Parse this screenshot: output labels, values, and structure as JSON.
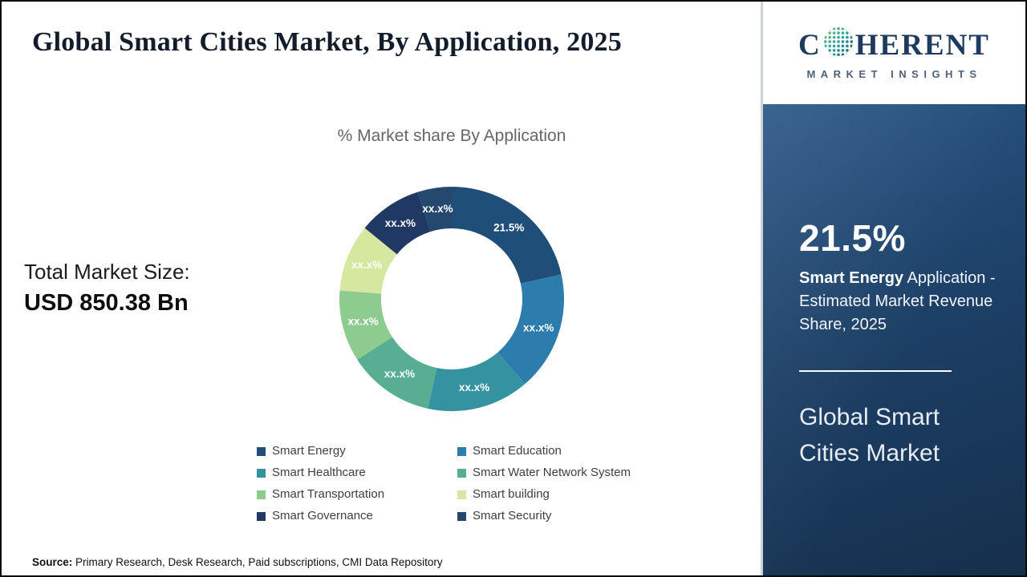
{
  "header": {
    "title": "Global Smart Cities Market, By Application, 2025",
    "logo": {
      "word_start": "C",
      "word_rest": "HERENT",
      "subtitle": "MARKET INSIGHTS"
    }
  },
  "left_stats": {
    "label": "Total Market Size:",
    "value": "USD 850.38 Bn"
  },
  "chart_data": {
    "type": "pie",
    "subtype": "donut",
    "title": "% Market share By Application",
    "inner_radius_ratio": 0.63,
    "legend_position": "bottom",
    "segments": [
      {
        "label": "Smart Energy",
        "value": 21.5,
        "display": "21.5%",
        "color": "#1f4e79"
      },
      {
        "label": "Smart Education",
        "value": 17.2,
        "display": "xx.x%",
        "color": "#2d7cae"
      },
      {
        "label": "Smart Healthcare",
        "value": 14.7,
        "display": "xx.x%",
        "color": "#35929f"
      },
      {
        "label": "Smart Water Network System",
        "value": 12.5,
        "display": "xx.x%",
        "color": "#57ae92"
      },
      {
        "label": "Smart Transportation",
        "value": 10.3,
        "display": "xx.x%",
        "color": "#8ecb8f"
      },
      {
        "label": "Smart building",
        "value": 9.7,
        "display": "xx.x%",
        "color": "#d6e8a0"
      },
      {
        "label": "Smart Governance",
        "value": 9.2,
        "display": "xx.x%",
        "color": "#1f3864"
      },
      {
        "label": "Smart Security",
        "value": 4.9,
        "display": "xx.x%",
        "color": "#25486e"
      }
    ]
  },
  "sidebar": {
    "stat_value": "21.5%",
    "stat_bold": "Smart Energy",
    "stat_rest": " Application - Estimated Market Revenue Share, 2025",
    "panel_title": "Global Smart Cities Market"
  },
  "source": {
    "label": "Source:",
    "text": " Primary Research, Desk Research, Paid subscriptions, CMI Data Repository"
  }
}
